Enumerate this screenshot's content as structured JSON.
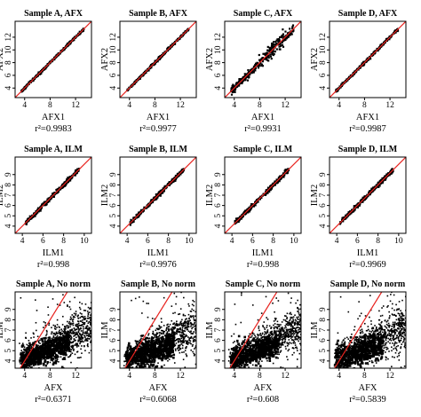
{
  "colors": {
    "points": "#000000",
    "reference_line": "#e8231f",
    "frame": "#000000"
  },
  "chart_data": [
    {
      "type": "scatter",
      "title": "Sample A, AFX",
      "xlabel": "AFX1",
      "ylabel": "AFX2",
      "xlim": [
        2.5,
        14.5
      ],
      "ylim": [
        2.5,
        14.5
      ],
      "xticks": [
        4,
        8,
        12
      ],
      "yticks": [
        4,
        6,
        8,
        10,
        12
      ],
      "r2_label": "r²=0.9983",
      "r2": 0.9983,
      "reference_line": "y=x",
      "spread": "tight"
    },
    {
      "type": "scatter",
      "title": "Sample B, AFX",
      "xlabel": "AFX1",
      "ylabel": "AFX2",
      "xlim": [
        2.5,
        14.5
      ],
      "ylim": [
        2.5,
        14.5
      ],
      "xticks": [
        4,
        8,
        12
      ],
      "yticks": [
        4,
        6,
        8,
        10,
        12
      ],
      "r2_label": "r²=0.9977",
      "r2": 0.9977,
      "reference_line": "y=x",
      "spread": "tight"
    },
    {
      "type": "scatter",
      "title": "Sample C, AFX",
      "xlabel": "AFX1",
      "ylabel": "AFX2",
      "xlim": [
        2.5,
        14.5
      ],
      "ylim": [
        2.5,
        14.5
      ],
      "xticks": [
        4,
        8,
        12
      ],
      "yticks": [
        4,
        6,
        8,
        10,
        12
      ],
      "r2_label": "r²=0.9931",
      "r2": 0.9931,
      "reference_line": "y=x",
      "spread": "moderate"
    },
    {
      "type": "scatter",
      "title": "Sample D, AFX",
      "xlabel": "AFX1",
      "ylabel": "AFX2",
      "xlim": [
        2.5,
        14.5
      ],
      "ylim": [
        2.5,
        14.5
      ],
      "xticks": [
        4,
        8,
        12
      ],
      "yticks": [
        4,
        6,
        8,
        10,
        12
      ],
      "r2_label": "r²=0.9987",
      "r2": 0.9987,
      "reference_line": "y=x",
      "spread": "tight"
    },
    {
      "type": "scatter",
      "title": "Sample A, ILM",
      "xlabel": "ILM1",
      "ylabel": "ILM2",
      "xlim": [
        3.3,
        10.7
      ],
      "ylim": [
        3.3,
        10.7
      ],
      "xticks": [
        4,
        6,
        8,
        10
      ],
      "yticks": [
        4,
        5,
        6,
        7,
        8,
        9
      ],
      "r2_label": "r²=0.998",
      "r2": 0.998,
      "reference_line": "y=x",
      "spread": "tight"
    },
    {
      "type": "scatter",
      "title": "Sample B, ILM",
      "xlabel": "ILM1",
      "ylabel": "ILM2",
      "xlim": [
        3.3,
        10.7
      ],
      "ylim": [
        3.3,
        10.7
      ],
      "xticks": [
        4,
        6,
        8,
        10
      ],
      "yticks": [
        4,
        5,
        6,
        7,
        8,
        9
      ],
      "r2_label": "r²=0.9976",
      "r2": 0.9976,
      "reference_line": "y=x",
      "spread": "tight"
    },
    {
      "type": "scatter",
      "title": "Sample C, ILM",
      "xlabel": "ILM1",
      "ylabel": "ILM2",
      "xlim": [
        3.3,
        10.7
      ],
      "ylim": [
        3.3,
        10.7
      ],
      "xticks": [
        4,
        6,
        8,
        10
      ],
      "yticks": [
        4,
        5,
        6,
        7,
        8,
        9
      ],
      "r2_label": "r²=0.998",
      "r2": 0.998,
      "reference_line": "y=x",
      "spread": "tight"
    },
    {
      "type": "scatter",
      "title": "Sample D, ILM",
      "xlabel": "ILM1",
      "ylabel": "ILM2",
      "xlim": [
        3.3,
        10.7
      ],
      "ylim": [
        3.3,
        10.7
      ],
      "xticks": [
        4,
        6,
        8,
        10
      ],
      "yticks": [
        4,
        5,
        6,
        7,
        8,
        9
      ],
      "r2_label": "r²=0.9969",
      "r2": 0.9969,
      "reference_line": "y=x",
      "spread": "tight"
    },
    {
      "type": "scatter",
      "title": "Sample A, No norm",
      "xlabel": "AFX",
      "ylabel": "ILM",
      "xlim": [
        2.5,
        14.5
      ],
      "ylim": [
        3.3,
        10.7
      ],
      "xticks": [
        4,
        8,
        12
      ],
      "yticks": [
        4,
        5,
        6,
        7,
        8,
        9
      ],
      "r2_label": "r²=0.6371",
      "r2": 0.6371,
      "reference_line": "y=x",
      "spread": "wide"
    },
    {
      "type": "scatter",
      "title": "Sample B, No norm",
      "xlabel": "AFX",
      "ylabel": "ILM",
      "xlim": [
        2.5,
        14.5
      ],
      "ylim": [
        3.3,
        10.7
      ],
      "xticks": [
        4,
        8,
        12
      ],
      "yticks": [
        4,
        5,
        6,
        7,
        8,
        9
      ],
      "r2_label": "r²=0.6068",
      "r2": 0.6068,
      "reference_line": "y=x",
      "spread": "wide"
    },
    {
      "type": "scatter",
      "title": "Sample C, No norm",
      "xlabel": "AFX",
      "ylabel": "ILM",
      "xlim": [
        2.5,
        14.5
      ],
      "ylim": [
        3.3,
        10.7
      ],
      "xticks": [
        4,
        8,
        12
      ],
      "yticks": [
        4,
        5,
        6,
        7,
        8,
        9
      ],
      "r2_label": "r²=0.608",
      "r2": 0.608,
      "reference_line": "y=x",
      "spread": "wide"
    },
    {
      "type": "scatter",
      "title": "Sample D, No norm",
      "xlabel": "AFX",
      "ylabel": "ILM",
      "xlim": [
        2.5,
        14.5
      ],
      "ylim": [
        3.3,
        10.7
      ],
      "xticks": [
        4,
        8,
        12
      ],
      "yticks": [
        4,
        5,
        6,
        7,
        8,
        9
      ],
      "r2_label": "r²=0.5839",
      "r2": 0.5839,
      "reference_line": "y=x",
      "spread": "wide"
    }
  ]
}
